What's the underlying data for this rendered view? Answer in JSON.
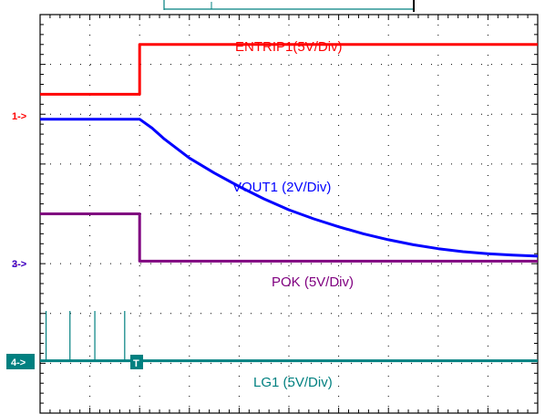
{
  "colors": {
    "background": "#ffffff",
    "grid": "#000000",
    "ch1": "#ff0000",
    "ch2": "#0000ff",
    "ch3": "#800080",
    "ch4": "#008080"
  },
  "chart_data": {
    "type": "line",
    "title": "",
    "grid": true,
    "divisions": {
      "horizontal": 10,
      "vertical": 8
    },
    "trigger_marker": "T",
    "x_trigger_div": 2.0,
    "series": [
      {
        "name": "ENTRIP1(5V/Div)",
        "color": "#ff0000",
        "ground_marker": "1->",
        "ground_div": 6.4,
        "points": [
          [
            0,
            6.4
          ],
          [
            2.0,
            6.4
          ],
          [
            2.0,
            7.4
          ],
          [
            10,
            7.4
          ]
        ]
      },
      {
        "name": "VOUT1 (2V/Div)",
        "color": "#0000ff",
        "ground_marker": "2->",
        "ground_div": 3.1,
        "points": [
          [
            0,
            5.9
          ],
          [
            2.0,
            5.9
          ],
          [
            2.25,
            5.72
          ],
          [
            2.5,
            5.5
          ],
          [
            3.0,
            5.12
          ],
          [
            3.5,
            4.82
          ],
          [
            4.0,
            4.55
          ],
          [
            4.5,
            4.3
          ],
          [
            5.0,
            4.08
          ],
          [
            5.5,
            3.9
          ],
          [
            6.0,
            3.74
          ],
          [
            6.5,
            3.6
          ],
          [
            7.0,
            3.48
          ],
          [
            7.5,
            3.38
          ],
          [
            8.0,
            3.3
          ],
          [
            8.5,
            3.24
          ],
          [
            9.0,
            3.2
          ],
          [
            9.5,
            3.17
          ],
          [
            10,
            3.15
          ]
        ]
      },
      {
        "name": "POK (5V/Div)",
        "color": "#800080",
        "ground_marker": "3->",
        "ground_div": 3.1,
        "points": [
          [
            0,
            4.0
          ],
          [
            2.0,
            4.0
          ],
          [
            2.0,
            3.05
          ],
          [
            10,
            3.05
          ]
        ]
      },
      {
        "name": "LG1 (5V/Div)",
        "color": "#008080",
        "ground_marker": "4->",
        "ground_div": 1.05,
        "points": [
          [
            0,
            1.05
          ],
          [
            10,
            1.05
          ]
        ],
        "spikes_x_div": [
          0.12,
          0.6,
          1.1,
          1.7
        ],
        "spike_top_div": 2.05
      }
    ]
  }
}
